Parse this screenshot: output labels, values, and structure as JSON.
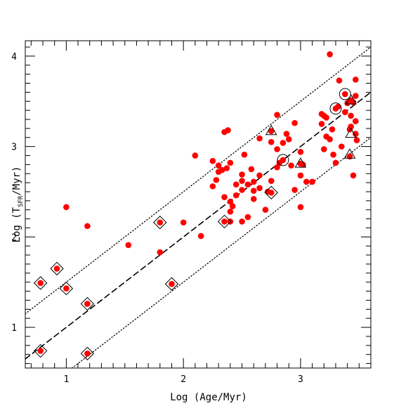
{
  "chart_data": {
    "type": "scatter",
    "title": "",
    "xlabel": "Log (Age/Myr)",
    "ylabel_main": "Log (T",
    "ylabel_sub": "SFR",
    "ylabel_tail": "/Myr)",
    "xlim": [
      0.65,
      3.6
    ],
    "ylim": [
      0.55,
      4.17
    ],
    "xticks": [
      1,
      2,
      3
    ],
    "yticks": [
      1,
      2,
      3,
      4
    ],
    "xtick_labels": [
      "1",
      "2",
      "3"
    ],
    "ytick_labels": [
      "1",
      "2",
      "3",
      "4"
    ],
    "colors": {
      "points": "#ff0000",
      "markers": "#000000"
    },
    "reference_lines": [
      {
        "style": "dashed",
        "x": [
          0.65,
          3.6
        ],
        "y": [
          0.65,
          3.6
        ]
      },
      {
        "style": "dotted",
        "x": [
          0.65,
          3.6
        ],
        "y": [
          1.15,
          4.1
        ]
      },
      {
        "style": "dotted",
        "x": [
          0.65,
          3.6
        ],
        "y": [
          0.15,
          3.1
        ]
      }
    ],
    "points": {
      "x": [
        0.78,
        0.78,
        0.92,
        1.0,
        1.0,
        1.18,
        1.18,
        1.18,
        1.53,
        1.8,
        1.8,
        1.9,
        2.0,
        2.1,
        2.15,
        2.25,
        2.25,
        2.28,
        2.3,
        2.3,
        2.33,
        2.35,
        2.35,
        2.35,
        2.37,
        2.38,
        2.4,
        2.4,
        2.4,
        2.4,
        2.42,
        2.45,
        2.45,
        2.5,
        2.5,
        2.5,
        2.5,
        2.52,
        2.55,
        2.55,
        2.58,
        2.6,
        2.6,
        2.6,
        2.65,
        2.65,
        2.65,
        2.7,
        2.72,
        2.75,
        2.75,
        2.75,
        2.75,
        2.8,
        2.8,
        2.8,
        2.82,
        2.85,
        2.85,
        2.88,
        2.9,
        2.92,
        2.95,
        2.95,
        3.0,
        3.0,
        3.0,
        3.0,
        3.02,
        3.05,
        3.1,
        3.18,
        3.18,
        3.2,
        3.2,
        3.22,
        3.22,
        3.25,
        3.25,
        3.27,
        3.28,
        3.3,
        3.3,
        3.32,
        3.33,
        3.35,
        3.38,
        3.38,
        3.4,
        3.42,
        3.42,
        3.43,
        3.43,
        3.43,
        3.45,
        3.45,
        3.47,
        3.47,
        3.47,
        3.47,
        3.48
      ],
      "y": [
        0.74,
        1.49,
        1.65,
        1.43,
        2.33,
        0.71,
        1.26,
        2.12,
        1.91,
        1.83,
        2.16,
        1.48,
        2.16,
        2.9,
        2.01,
        2.56,
        2.84,
        2.63,
        2.72,
        2.79,
        2.74,
        2.44,
        2.17,
        3.16,
        2.76,
        3.18,
        2.28,
        2.17,
        2.39,
        2.82,
        2.34,
        2.46,
        2.58,
        2.17,
        2.52,
        2.62,
        2.69,
        2.91,
        2.22,
        2.58,
        2.75,
        2.42,
        2.51,
        2.61,
        3.09,
        2.68,
        2.54,
        2.3,
        2.5,
        3.05,
        3.17,
        2.62,
        2.49,
        2.97,
        2.77,
        3.35,
        2.82,
        2.85,
        3.04,
        3.14,
        3.08,
        2.79,
        3.26,
        2.52,
        2.33,
        2.94,
        2.81,
        2.68,
        2.8,
        2.61,
        2.61,
        3.36,
        3.25,
        2.97,
        3.34,
        3.32,
        3.11,
        4.02,
        3.08,
        3.19,
        2.91,
        3.42,
        2.82,
        3.44,
        3.73,
        3.0,
        3.58,
        3.38,
        3.48,
        3.19,
        2.89,
        3.51,
        3.22,
        3.34,
        3.49,
        2.68,
        3.14,
        3.56,
        3.28,
        3.74,
        3.07
      ]
    },
    "diamond_markers": {
      "x": [
        0.78,
        0.78,
        0.92,
        1.0,
        1.18,
        1.18,
        1.8,
        1.9,
        2.35,
        2.75
      ],
      "y": [
        0.74,
        1.49,
        1.65,
        1.43,
        1.26,
        0.71,
        2.16,
        1.48,
        2.17,
        2.49
      ]
    },
    "triangle_markers": {
      "x": [
        2.75,
        3.0,
        3.42,
        3.43,
        3.43
      ],
      "y": [
        3.17,
        2.81,
        2.91,
        3.14,
        3.51
      ]
    },
    "circle_markers": {
      "x": [
        2.85,
        3.3,
        3.38
      ],
      "y": [
        2.85,
        3.42,
        3.58
      ]
    }
  }
}
